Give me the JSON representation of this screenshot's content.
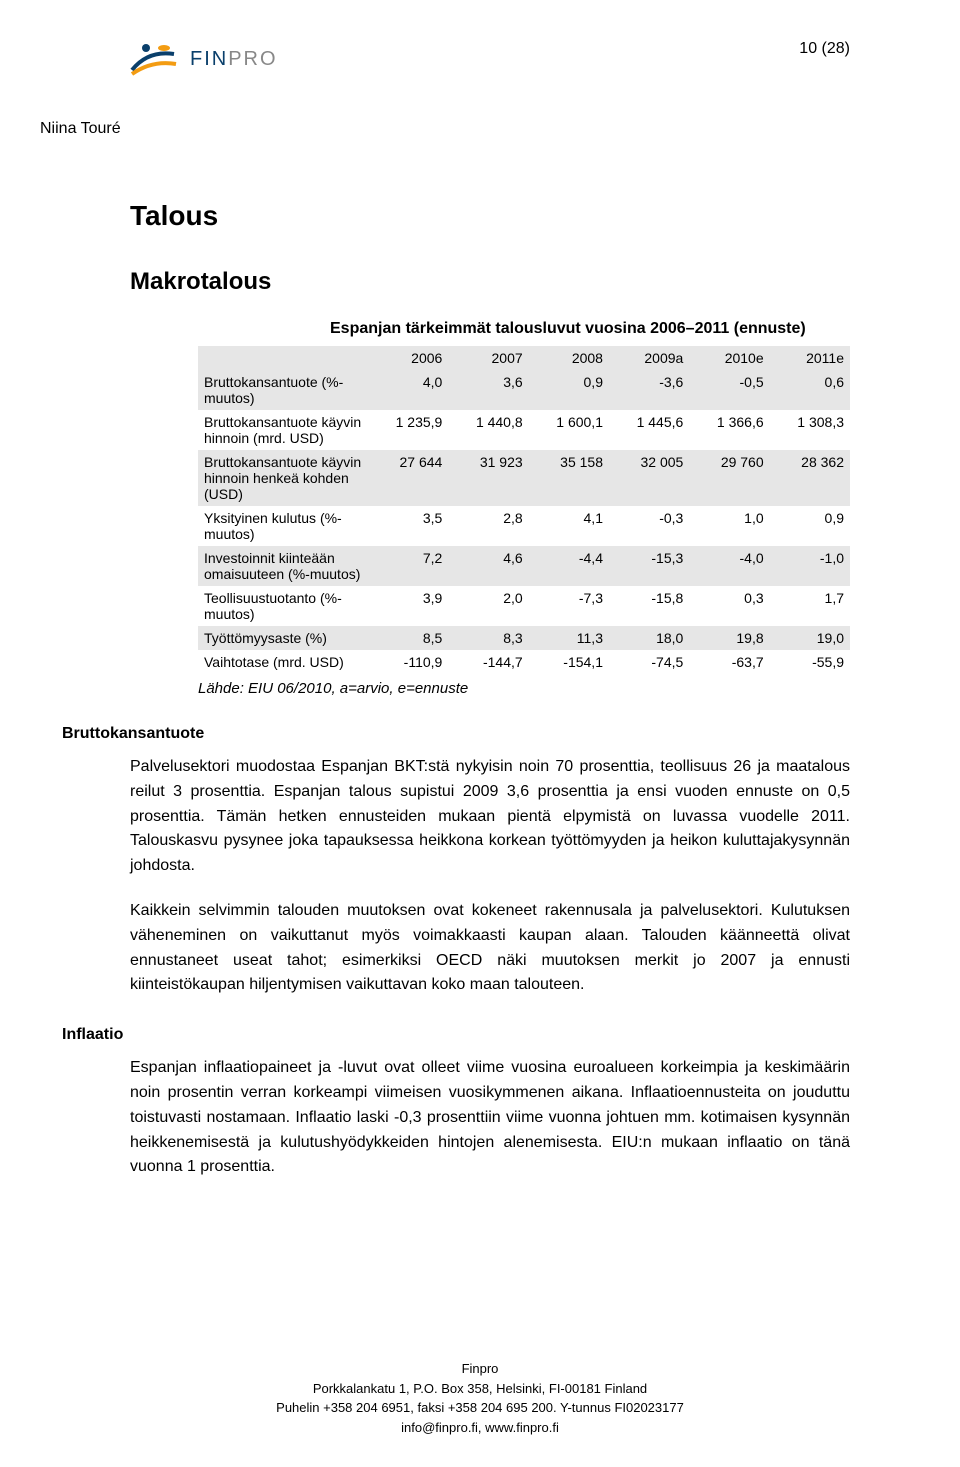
{
  "header": {
    "logo_text_1": "FIN",
    "logo_text_2": "PRO",
    "page_number": "10 (28)",
    "author": "Niina Touré"
  },
  "headings": {
    "h1": "Talous",
    "h2": "Makrotalous",
    "table_title": "Espanjan tärkeimmät talousluvut vuosina 2006–2011 (ennuste)",
    "side_bkt": "Bruttokansantuote",
    "side_inflaatio": "Inflaatio"
  },
  "table": {
    "columns": [
      "",
      "2006",
      "2007",
      "2008",
      "2009a",
      "2010e",
      "2011e"
    ],
    "rows": [
      {
        "label": "Bruttokansantuote (%-muutos)",
        "cells": [
          "4,0",
          "3,6",
          "0,9",
          "-3,6",
          "-0,5",
          "0,6"
        ],
        "shaded": true
      },
      {
        "label": "Bruttokansantuote käyvin hinnoin (mrd. USD)",
        "cells": [
          "1 235,9",
          "1 440,8",
          "1 600,1",
          "1 445,6",
          "1 366,6",
          "1 308,3"
        ],
        "shaded": false
      },
      {
        "label": "Bruttokansantuote käyvin hinnoin henkeä kohden (USD)",
        "cells": [
          "27 644",
          "31 923",
          "35 158",
          "32 005",
          "29 760",
          "28 362"
        ],
        "shaded": true
      },
      {
        "label": "Yksityinen kulutus (%-muutos)",
        "cells": [
          "3,5",
          "2,8",
          "4,1",
          "-0,3",
          "1,0",
          "0,9"
        ],
        "shaded": false
      },
      {
        "label": "Investoinnit kiinteään omaisuuteen (%-muutos)",
        "cells": [
          "7,2",
          "4,6",
          "-4,4",
          "-15,3",
          "-4,0",
          "-1,0"
        ],
        "shaded": true
      },
      {
        "label": "Teollisuustuotanto (%-muutos)",
        "cells": [
          "3,9",
          "2,0",
          "-7,3",
          "-15,8",
          "0,3",
          "1,7"
        ],
        "shaded": false
      },
      {
        "label": "Työttömyysaste (%)",
        "cells": [
          "8,5",
          "8,3",
          "11,3",
          "18,0",
          "19,8",
          "19,0"
        ],
        "shaded": true
      },
      {
        "label": "Vaihtotase (mrd. USD)",
        "cells": [
          "-110,9",
          "-144,7",
          "-154,1",
          "-74,5",
          "-63,7",
          "-55,9"
        ],
        "shaded": false
      }
    ],
    "source": "Lähde: EIU 06/2010, a=arvio, e=ennuste",
    "header_bg": "#e6e6e6",
    "font_size": 14
  },
  "paragraphs": {
    "p1": "Palvelusektori muodostaa Espanjan BKT:stä nykyisin noin 70 prosenttia, teollisuus 26 ja maatalous reilut 3 prosenttia. Espanjan talous supistui 2009 3,6 prosenttia ja ensi vuoden ennuste on 0,5 prosenttia. Tämän hetken ennusteiden mukaan pientä elpymistä on luvassa vuodelle 2011. Talouskasvu pysynee joka tapauksessa heikkona korkean työttömyyden ja heikon kuluttajakysynnän johdosta.",
    "p2": "Kaikkein selvimmin talouden muutoksen ovat kokeneet rakennusala ja palvelusektori. Kulutuksen väheneminen on vaikuttanut myös voimakkaasti kaupan alaan. Talouden käänneettä olivat ennustaneet useat tahot; esimerkiksi OECD näki muutoksen merkit jo 2007 ja ennusti kiinteistökaupan hiljentymisen vaikuttavan koko maan talouteen.",
    "p3": "Espanjan inflaatiopaineet ja -luvut ovat olleet viime vuosina euroalueen korkeimpia ja keskimäärin noin prosentin verran korkeampi viimeisen vuosikymmenen aikana. Inflaatioennusteita on jouduttu toistuvasti nostamaan. Inflaatio laski -0,3 prosenttiin viime vuonna johtuen mm. kotimaisen kysynnän heikkenemisestä ja kulutushyödykkeiden hintojen alenemisesta. EIU:n mukaan inflaatio on tänä vuonna 1 prosenttia."
  },
  "footer": {
    "line1": "Finpro",
    "line2": "Porkkalankatu 1, P.O. Box 358, Helsinki, FI-00181 Finland",
    "line3": "Puhelin +358 204 6951, faksi +358 204 695 200. Y-tunnus FI02023177",
    "line4": "info@finpro.fi, www.finpro.fi"
  },
  "colors": {
    "logo_navy": "#0a3f6b",
    "logo_orange": "#f39c12",
    "shaded_row": "#e6e6e6",
    "text": "#000000",
    "background": "#ffffff"
  }
}
